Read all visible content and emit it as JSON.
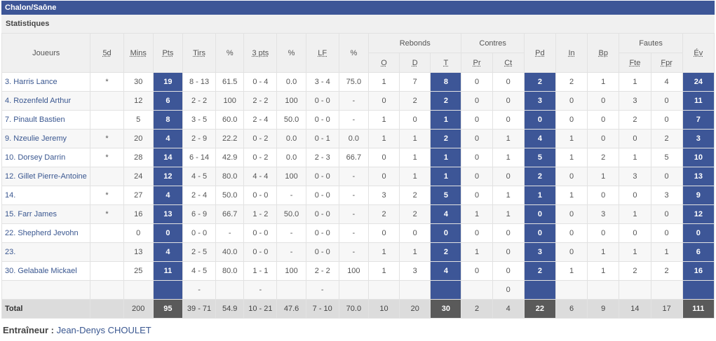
{
  "team": "Chalon/Saône",
  "section": "Statistiques",
  "headers": {
    "player": "Joueurs",
    "starter": "5d",
    "mins": "Mins",
    "pts": "Pts",
    "tirs": "Tirs",
    "pct1": "%",
    "three": "3 pts",
    "pct2": "%",
    "lf": "LF",
    "pct3": "%",
    "rebonds": "Rebonds",
    "reb_o": "O",
    "reb_d": "D",
    "reb_t": "T",
    "contres": "Contres",
    "contre_pr": "Pr",
    "contre_ct": "Ct",
    "pd": "Pd",
    "in": "In",
    "bp": "Bp",
    "fautes": "Fautes",
    "faute_fte": "Fte",
    "faute_fpr": "Fpr",
    "ev": "Év"
  },
  "rows": [
    [
      "3. Harris Lance",
      "*",
      "30",
      "19",
      "8 - 13",
      "61.5",
      "0 - 4",
      "0.0",
      "3 - 4",
      "75.0",
      "1",
      "7",
      "8",
      "0",
      "0",
      "2",
      "2",
      "1",
      "1",
      "4",
      "24"
    ],
    [
      "4. Rozenfeld Arthur",
      "",
      "12",
      "6",
      "2 - 2",
      "100",
      "2 - 2",
      "100",
      "0 - 0",
      "-",
      "0",
      "2",
      "2",
      "0",
      "0",
      "3",
      "0",
      "0",
      "3",
      "0",
      "11"
    ],
    [
      "7. Pinault Bastien",
      "",
      "5",
      "8",
      "3 - 5",
      "60.0",
      "2 - 4",
      "50.0",
      "0 - 0",
      "-",
      "1",
      "0",
      "1",
      "0",
      "0",
      "0",
      "0",
      "0",
      "2",
      "0",
      "7"
    ],
    [
      "9. Nzeulie Jeremy",
      "*",
      "20",
      "4",
      "2 - 9",
      "22.2",
      "0 - 2",
      "0.0",
      "0 - 1",
      "0.0",
      "1",
      "1",
      "2",
      "0",
      "1",
      "4",
      "1",
      "0",
      "0",
      "2",
      "3"
    ],
    [
      "10. Dorsey Darrin",
      "*",
      "28",
      "14",
      "6 - 14",
      "42.9",
      "0 - 2",
      "0.0",
      "2 - 3",
      "66.7",
      "0",
      "1",
      "1",
      "0",
      "1",
      "5",
      "1",
      "2",
      "1",
      "5",
      "10"
    ],
    [
      "12. Gillet Pierre-Antoine",
      "",
      "24",
      "12",
      "4 - 5",
      "80.0",
      "4 - 4",
      "100",
      "0 - 0",
      "-",
      "0",
      "1",
      "1",
      "0",
      "0",
      "2",
      "0",
      "1",
      "3",
      "0",
      "13"
    ],
    [
      "14.",
      "*",
      "27",
      "4",
      "2 - 4",
      "50.0",
      "0 - 0",
      "-",
      "0 - 0",
      "-",
      "3",
      "2",
      "5",
      "0",
      "1",
      "1",
      "1",
      "0",
      "0",
      "3",
      "9"
    ],
    [
      "15. Farr James",
      "*",
      "16",
      "13",
      "6 - 9",
      "66.7",
      "1 - 2",
      "50.0",
      "0 - 0",
      "-",
      "2",
      "2",
      "4",
      "1",
      "1",
      "0",
      "0",
      "3",
      "1",
      "0",
      "12"
    ],
    [
      "22. Shepherd Jevohn",
      "",
      "0",
      "0",
      "0 - 0",
      "-",
      "0 - 0",
      "-",
      "0 - 0",
      "-",
      "0",
      "0",
      "0",
      "0",
      "0",
      "0",
      "0",
      "0",
      "0",
      "0",
      "0"
    ],
    [
      "23.",
      "",
      "13",
      "4",
      "2 - 5",
      "40.0",
      "0 - 0",
      "-",
      "0 - 0",
      "-",
      "1",
      "1",
      "2",
      "1",
      "0",
      "3",
      "0",
      "1",
      "1",
      "1",
      "6"
    ],
    [
      "30. Gelabale Mickael",
      "",
      "25",
      "11",
      "4 - 5",
      "80.0",
      "1 - 1",
      "100",
      "2 - 2",
      "100",
      "1",
      "3",
      "4",
      "0",
      "0",
      "2",
      "1",
      "1",
      "2",
      "2",
      "16"
    ],
    [
      "",
      "",
      "",
      "",
      "-",
      "",
      "-",
      "",
      "-",
      "",
      "",
      "",
      "",
      "",
      "0",
      "",
      "",
      "",
      "",
      "",
      ""
    ]
  ],
  "total": [
    "Total",
    "",
    "200",
    "95",
    "39 - 71",
    "54.9",
    "10 - 21",
    "47.6",
    "7 - 10",
    "70.0",
    "10",
    "20",
    "30",
    "2",
    "4",
    "22",
    "6",
    "9",
    "14",
    "17",
    "111"
  ],
  "coach": {
    "label": "Entraîneur :",
    "name": "Jean-Denys CHOULET"
  }
}
